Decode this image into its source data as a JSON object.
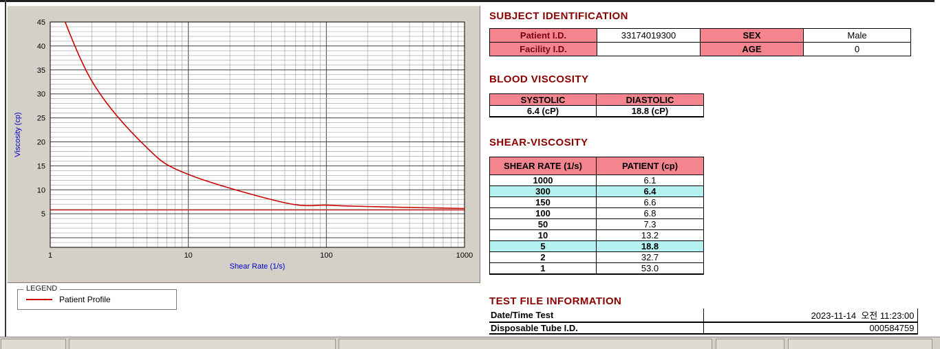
{
  "chart_data": {
    "type": "line",
    "title": "",
    "xlabel": "Shear Rate (1/s)",
    "ylabel": "Viscosity (cp)",
    "x_scale": "log",
    "xlim": [
      1,
      1000
    ],
    "ylim": [
      -2,
      45
    ],
    "x_ticks": [
      1,
      10,
      100,
      1000
    ],
    "y_ticks": [
      5,
      10,
      15,
      20,
      25,
      30,
      35,
      40,
      45
    ],
    "grid": "on",
    "axis_label_color": "#0000c8",
    "series": [
      {
        "name": "Patient Profile",
        "color": "#cc0000",
        "x": [
          1,
          2,
          5,
          10,
          50,
          100,
          150,
          300,
          1000
        ],
        "y": [
          53.0,
          32.7,
          18.8,
          13.2,
          7.3,
          6.8,
          6.6,
          6.4,
          6.1
        ]
      },
      {
        "name": "baseline",
        "color": "#cc0000",
        "y_const": 5.8
      }
    ],
    "legend": {
      "box_label": "LEGEND",
      "entries": [
        {
          "label": "Patient Profile",
          "color": "#cc0000"
        }
      ]
    }
  },
  "subject_identification": {
    "heading": "SUBJECT IDENTIFICATION",
    "labels": {
      "patient_id": "Patient I.D.",
      "facility_id": "Facility I.D.",
      "sex": "SEX",
      "age": "AGE"
    },
    "values": {
      "patient_id": "33174019300",
      "facility_id": "",
      "sex": "Male",
      "age": "0"
    }
  },
  "blood_viscosity": {
    "heading": "BLOOD VISCOSITY",
    "headers": [
      "SYSTOLIC",
      "DIASTOLIC"
    ],
    "values": [
      "6.4 (cP)",
      "18.8 (cP)"
    ]
  },
  "shear_viscosity": {
    "heading": "SHEAR-VISCOSITY",
    "headers": [
      "SHEAR RATE (1/s)",
      "PATIENT (cp)"
    ],
    "rows": [
      {
        "rate": "1000",
        "value": "6.1",
        "highlight": false
      },
      {
        "rate": "300",
        "value": "6.4",
        "highlight": true
      },
      {
        "rate": "150",
        "value": "6.6",
        "highlight": false
      },
      {
        "rate": "100",
        "value": "6.8",
        "highlight": false
      },
      {
        "rate": "50",
        "value": "7.3",
        "highlight": false
      },
      {
        "rate": "10",
        "value": "13.2",
        "highlight": false
      },
      {
        "rate": "5",
        "value": "18.8",
        "highlight": true
      },
      {
        "rate": "2",
        "value": "32.7",
        "highlight": false
      },
      {
        "rate": "1",
        "value": "53.0",
        "highlight": false
      }
    ]
  },
  "test_file_information": {
    "heading": "TEST FILE INFORMATION",
    "rows": [
      {
        "label": "Date/Time Test",
        "value": "2023-11-14  오전 11:23:00"
      },
      {
        "label": "Disposable Tube I.D.",
        "value": "000584759"
      }
    ]
  },
  "colors": {
    "heading": "#8b0000",
    "table_header_pink": "#f4858f",
    "row_highlight_cyan": "#b3f2f0",
    "panel_gray": "#d4d0c8",
    "curve_red": "#cc0000",
    "axis_blue": "#0000c8"
  }
}
